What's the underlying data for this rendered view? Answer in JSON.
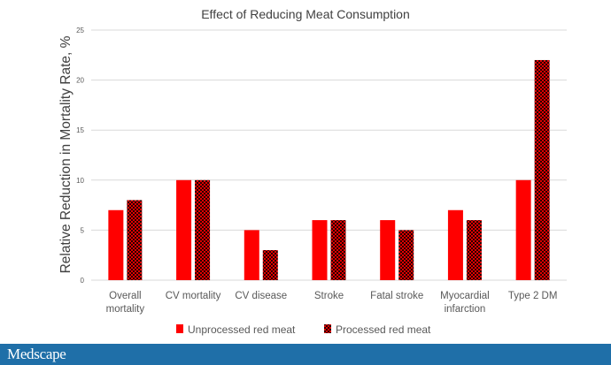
{
  "footer": {
    "brand": "Medscape"
  },
  "colors": {
    "unprocessed": "#ff0000",
    "processed_fill": "#e00000",
    "processed_dots": "#2a0000",
    "grid": "#d9d9d9",
    "axis_text": "#595959",
    "footer_bg": "#1f6fa8"
  },
  "chart_data": {
    "type": "bar",
    "title": "Effect of Reducing Meat Consumption",
    "xlabel": "",
    "ylabel": "Relative Reduction in Mortality Rate, %",
    "ylim": [
      0,
      25
    ],
    "yticks": [
      0,
      5,
      10,
      15,
      20,
      25
    ],
    "grid": true,
    "legend_position": "bottom",
    "categories": [
      [
        "Overall",
        "mortality"
      ],
      [
        "CV mortality"
      ],
      [
        "CV disease"
      ],
      [
        "Stroke"
      ],
      [
        "Fatal stroke"
      ],
      [
        "Myocardial",
        "infarction"
      ],
      [
        "Type 2 DM"
      ]
    ],
    "series": [
      {
        "name": "Unprocessed red meat",
        "values": [
          7,
          10,
          5,
          6,
          6,
          7,
          10
        ]
      },
      {
        "name": "Processed red meat",
        "values": [
          8,
          10,
          3,
          6,
          5,
          6,
          22
        ]
      }
    ]
  }
}
